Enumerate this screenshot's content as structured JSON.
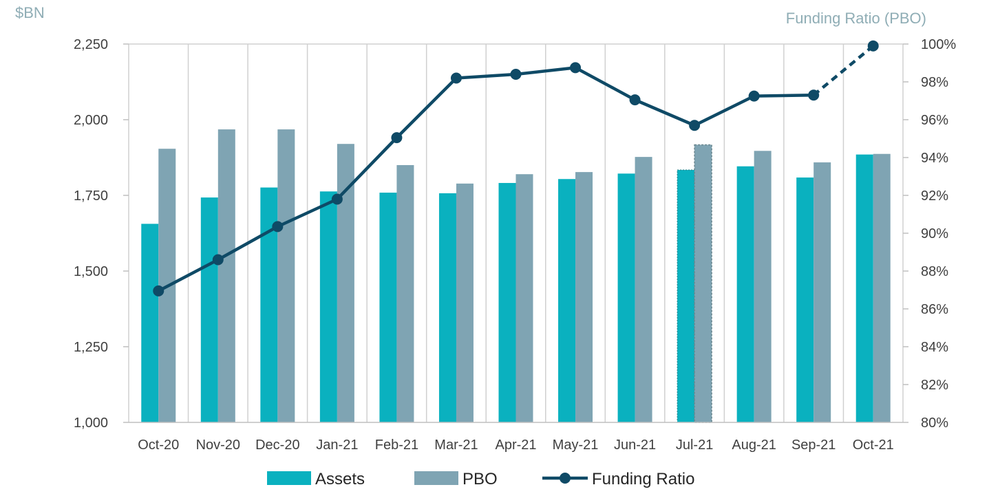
{
  "chart_data": {
    "type": "bar",
    "left_axis_unit": "$BN",
    "right_axis_title": "Funding Ratio (PBO)",
    "categories": [
      "Oct-20",
      "Nov-20",
      "Dec-20",
      "Jan-21",
      "Feb-21",
      "Mar-21",
      "Apr-21",
      "May-21",
      "Jun-21",
      "Jul-21",
      "Aug-21",
      "Sep-21",
      "Oct-21"
    ],
    "ylim": [
      1000,
      2250
    ],
    "y_ticks": [
      "1,000",
      "1,250",
      "1,500",
      "1,750",
      "2,000",
      "2,250"
    ],
    "y2lim": [
      80,
      100
    ],
    "y2_ticks": [
      "80%",
      "82%",
      "84%",
      "86%",
      "88%",
      "90%",
      "92%",
      "94%",
      "96%",
      "98%",
      "100%"
    ],
    "grid": "vertical",
    "legend_position": "bottom",
    "series": [
      {
        "name": "Assets",
        "kind": "bar",
        "axis": "left",
        "color": "#0ab1bf",
        "values": [
          1656,
          1743,
          1776,
          1763,
          1759,
          1757,
          1791,
          1804,
          1822,
          1834,
          1846,
          1809,
          1885
        ]
      },
      {
        "name": "PBO",
        "kind": "bar",
        "axis": "left",
        "color": "#7fa4b3",
        "values": [
          1904,
          1968,
          1968,
          1920,
          1850,
          1789,
          1820,
          1827,
          1877,
          1917,
          1897,
          1859,
          1887
        ]
      },
      {
        "name": "Funding Ratio",
        "kind": "line",
        "axis": "right",
        "color": "#0f4a66",
        "values": [
          86.95,
          88.6,
          90.35,
          91.8,
          95.05,
          98.2,
          98.4,
          98.75,
          97.05,
          95.7,
          97.25,
          97.3,
          99.9
        ]
      }
    ],
    "estimated_indices": [
      9
    ],
    "dashed_line_last_segment": true
  }
}
